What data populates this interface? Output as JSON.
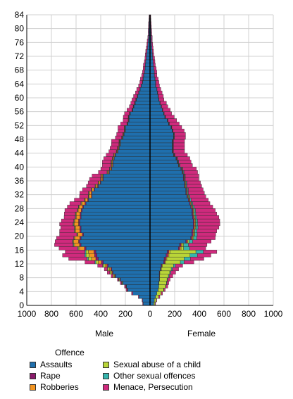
{
  "chart_data": {
    "type": "bar",
    "orientation": "horizontal-pyramid",
    "xlim": [
      -1000,
      1000
    ],
    "ylim": [
      0,
      84
    ],
    "x_ticks": [
      "1000",
      "800",
      "600",
      "400",
      "200",
      "0",
      "200",
      "400",
      "600",
      "800",
      "1000"
    ],
    "y_ticks": [
      "0",
      "4",
      "8",
      "12",
      "16",
      "20",
      "24",
      "28",
      "32",
      "36",
      "40",
      "44",
      "48",
      "52",
      "56",
      "60",
      "64",
      "68",
      "72",
      "76",
      "80",
      "84"
    ],
    "male_label": "Male",
    "female_label": "Female",
    "legend_title": "Offence",
    "grid": true,
    "ages": [
      0,
      1,
      2,
      3,
      4,
      5,
      6,
      7,
      8,
      9,
      10,
      11,
      12,
      13,
      14,
      15,
      16,
      17,
      18,
      19,
      20,
      21,
      22,
      23,
      24,
      25,
      26,
      27,
      28,
      29,
      30,
      31,
      32,
      33,
      34,
      35,
      36,
      37,
      38,
      39,
      40,
      41,
      42,
      43,
      44,
      45,
      46,
      47,
      48,
      49,
      50,
      51,
      52,
      53,
      54,
      55,
      56,
      57,
      58,
      59,
      60,
      61,
      62,
      63,
      64,
      65,
      66,
      67,
      68,
      69,
      70,
      71,
      72,
      73,
      74,
      75,
      76,
      77,
      78,
      79,
      80,
      81,
      82,
      83
    ],
    "series": [
      {
        "name": "Assaults",
        "color": "#1f6fad",
        "male": [
          55,
          60,
          90,
          140,
          180,
          190,
          220,
          240,
          280,
          300,
          310,
          340,
          380,
          420,
          430,
          440,
          520,
          560,
          570,
          560,
          540,
          560,
          560,
          570,
          570,
          560,
          560,
          550,
          540,
          520,
          500,
          470,
          470,
          450,
          420,
          400,
          380,
          380,
          330,
          310,
          300,
          300,
          290,
          280,
          260,
          250,
          240,
          240,
          220,
          210,
          200,
          200,
          180,
          170,
          170,
          160,
          140,
          130,
          120,
          110,
          100,
          90,
          80,
          70,
          60,
          55,
          50,
          45,
          40,
          38,
          35,
          30,
          28,
          25,
          20,
          18,
          15,
          12,
          10,
          10,
          8,
          8,
          6,
          5
        ],
        "female": [
          30,
          35,
          45,
          55,
          65,
          70,
          70,
          75,
          75,
          75,
          85,
          90,
          110,
          115,
          130,
          140,
          230,
          240,
          290,
          330,
          340,
          340,
          350,
          350,
          350,
          345,
          340,
          340,
          330,
          320,
          310,
          300,
          290,
          290,
          280,
          280,
          270,
          270,
          260,
          250,
          230,
          220,
          210,
          190,
          180,
          180,
          180,
          180,
          190,
          190,
          180,
          170,
          150,
          140,
          120,
          110,
          100,
          90,
          80,
          70,
          65,
          60,
          55,
          45,
          45,
          40,
          35,
          35,
          30,
          28,
          25,
          22,
          20,
          18,
          15,
          12,
          10,
          10,
          8,
          7,
          6,
          5,
          4,
          3
        ]
      },
      {
        "name": "Rape",
        "color": "#8a1b6b",
        "male": [
          0,
          0,
          0,
          0,
          2,
          2,
          3,
          4,
          5,
          6,
          8,
          10,
          15,
          20,
          20,
          15,
          12,
          12,
          10,
          10,
          10,
          10,
          10,
          10,
          10,
          8,
          8,
          8,
          8,
          8,
          6,
          6,
          6,
          6,
          6,
          5,
          5,
          5,
          5,
          5,
          4,
          4,
          4,
          4,
          4,
          4,
          3,
          3,
          3,
          3,
          3,
          3,
          2,
          2,
          2,
          2,
          2,
          2,
          2,
          2,
          1,
          1,
          1,
          1,
          1,
          1,
          1,
          1,
          1,
          1,
          1,
          1,
          1,
          0,
          0,
          0,
          0,
          0,
          0,
          0,
          0,
          0,
          0,
          0
        ],
        "female": [
          0,
          0,
          0,
          0,
          1,
          1,
          2,
          2,
          3,
          3,
          4,
          6,
          10,
          14,
          14,
          12,
          12,
          12,
          10,
          10,
          10,
          10,
          10,
          10,
          10,
          10,
          8,
          8,
          8,
          8,
          6,
          6,
          6,
          6,
          5,
          5,
          5,
          5,
          5,
          5,
          4,
          4,
          4,
          4,
          3,
          3,
          3,
          3,
          2,
          2,
          2,
          2,
          2,
          2,
          2,
          1,
          1,
          1,
          1,
          1,
          1,
          1,
          1,
          1,
          1,
          1,
          1,
          0,
          0,
          0,
          0,
          0,
          0,
          0,
          0,
          0,
          0,
          0,
          0,
          0,
          0,
          0,
          0,
          0
        ]
      },
      {
        "name": "Robberies",
        "color": "#f39522",
        "male": [
          0,
          0,
          0,
          0,
          0,
          1,
          2,
          3,
          5,
          8,
          12,
          15,
          25,
          35,
          45,
          45,
          40,
          40,
          40,
          40,
          35,
          35,
          35,
          35,
          30,
          30,
          30,
          25,
          25,
          25,
          20,
          18,
          16,
          14,
          12,
          10,
          10,
          9,
          8,
          8,
          7,
          7,
          6,
          6,
          5,
          5,
          5,
          4,
          4,
          4,
          3,
          3,
          3,
          3,
          2,
          2,
          2,
          2,
          1,
          1,
          1,
          1,
          1,
          1,
          1,
          1,
          1,
          0,
          0,
          0,
          0,
          0,
          0,
          0,
          0,
          0,
          0,
          0,
          0,
          0,
          0,
          0,
          0,
          0
        ],
        "female": [
          0,
          0,
          0,
          0,
          0,
          0,
          1,
          1,
          1,
          2,
          3,
          4,
          6,
          8,
          10,
          10,
          10,
          8,
          8,
          8,
          8,
          8,
          8,
          7,
          7,
          7,
          6,
          6,
          6,
          5,
          5,
          5,
          4,
          4,
          4,
          4,
          3,
          3,
          3,
          3,
          3,
          2,
          2,
          2,
          2,
          2,
          2,
          2,
          1,
          1,
          1,
          1,
          1,
          1,
          1,
          1,
          1,
          1,
          0,
          0,
          0,
          0,
          0,
          0,
          0,
          0,
          0,
          0,
          0,
          0,
          0,
          0,
          0,
          0,
          0,
          0,
          0,
          0,
          0,
          0,
          0,
          0,
          0,
          0
        ]
      },
      {
        "name": "Sexual abuse of a child",
        "color": "#b9d538",
        "male": [
          0,
          0,
          0,
          0,
          2,
          3,
          5,
          6,
          8,
          10,
          12,
          15,
          20,
          25,
          25,
          20,
          10,
          8,
          6,
          5,
          5,
          5,
          5,
          5,
          5,
          5,
          5,
          5,
          5,
          5,
          5,
          5,
          5,
          5,
          5,
          5,
          4,
          4,
          4,
          4,
          4,
          4,
          4,
          4,
          3,
          3,
          3,
          3,
          3,
          3,
          3,
          3,
          2,
          2,
          2,
          2,
          2,
          2,
          2,
          2,
          1,
          1,
          1,
          1,
          1,
          1,
          1,
          0,
          0,
          0,
          0,
          0,
          0,
          0,
          0,
          0,
          0,
          0,
          0,
          0,
          0,
          0,
          0,
          0
        ],
        "female": [
          10,
          15,
          25,
          35,
          45,
          55,
          60,
          60,
          70,
          80,
          80,
          90,
          120,
          140,
          170,
          210,
          20,
          12,
          8,
          6,
          5,
          5,
          5,
          5,
          5,
          5,
          5,
          5,
          5,
          4,
          4,
          4,
          4,
          4,
          4,
          4,
          3,
          3,
          3,
          3,
          3,
          3,
          3,
          3,
          2,
          2,
          2,
          2,
          2,
          2,
          2,
          2,
          2,
          1,
          1,
          1,
          1,
          1,
          1,
          1,
          1,
          1,
          0,
          0,
          0,
          0,
          0,
          0,
          0,
          0,
          0,
          0,
          0,
          0,
          0,
          0,
          0,
          0,
          0,
          0,
          0,
          0,
          0,
          0
        ]
      },
      {
        "name": "Other sexual offences",
        "color": "#35b5ad",
        "male": [
          0,
          0,
          0,
          0,
          0,
          1,
          1,
          2,
          2,
          3,
          4,
          5,
          8,
          10,
          10,
          8,
          6,
          5,
          4,
          4,
          4,
          4,
          4,
          4,
          4,
          4,
          3,
          3,
          3,
          3,
          3,
          3,
          3,
          3,
          3,
          2,
          2,
          2,
          2,
          2,
          2,
          2,
          2,
          2,
          2,
          2,
          2,
          2,
          1,
          1,
          1,
          1,
          1,
          1,
          1,
          1,
          1,
          1,
          1,
          1,
          1,
          0,
          0,
          0,
          0,
          0,
          0,
          0,
          0,
          0,
          0,
          0,
          0,
          0,
          0,
          0,
          0,
          0,
          0,
          0,
          0,
          0,
          0,
          0
        ],
        "female": [
          0,
          0,
          0,
          1,
          2,
          3,
          4,
          5,
          6,
          8,
          10,
          15,
          30,
          50,
          60,
          60,
          50,
          40,
          30,
          25,
          20,
          18,
          16,
          15,
          14,
          12,
          12,
          10,
          10,
          9,
          8,
          8,
          7,
          7,
          6,
          6,
          5,
          5,
          5,
          5,
          4,
          4,
          4,
          4,
          3,
          3,
          3,
          3,
          3,
          3,
          2,
          2,
          2,
          2,
          2,
          2,
          1,
          1,
          1,
          1,
          1,
          1,
          1,
          1,
          1,
          0,
          0,
          0,
          0,
          0,
          0,
          0,
          0,
          0,
          0,
          0,
          0,
          0,
          0,
          0,
          0,
          0,
          0,
          0
        ]
      },
      {
        "name": "Menace, Persecution",
        "color": "#cf2a7d",
        "male": [
          5,
          5,
          5,
          10,
          10,
          10,
          10,
          10,
          15,
          20,
          25,
          40,
          80,
          150,
          180,
          160,
          150,
          150,
          140,
          140,
          140,
          120,
          110,
          110,
          100,
          90,
          90,
          100,
          90,
          90,
          80,
          70,
          70,
          70,
          70,
          80,
          90,
          70,
          70,
          70,
          70,
          70,
          70,
          60,
          60,
          60,
          60,
          60,
          50,
          50,
          50,
          50,
          50,
          40,
          40,
          40,
          40,
          30,
          30,
          30,
          30,
          25,
          25,
          20,
          20,
          20,
          15,
          15,
          15,
          15,
          10,
          10,
          10,
          10,
          10,
          8,
          8,
          6,
          5,
          5,
          5,
          4,
          3,
          3
        ],
        "female": [
          5,
          5,
          10,
          10,
          10,
          15,
          15,
          20,
          30,
          40,
          50,
          60,
          80,
          110,
          110,
          110,
          130,
          150,
          150,
          150,
          150,
          160,
          170,
          180,
          180,
          180,
          170,
          160,
          150,
          140,
          140,
          130,
          130,
          120,
          120,
          110,
          110,
          110,
          110,
          110,
          100,
          100,
          100,
          100,
          90,
          90,
          90,
          90,
          90,
          90,
          90,
          80,
          80,
          70,
          70,
          60,
          60,
          50,
          50,
          40,
          40,
          35,
          30,
          30,
          25,
          25,
          20,
          20,
          20,
          15,
          15,
          15,
          10,
          10,
          10,
          10,
          8,
          8,
          6,
          6,
          5,
          4,
          3,
          3
        ]
      }
    ]
  }
}
